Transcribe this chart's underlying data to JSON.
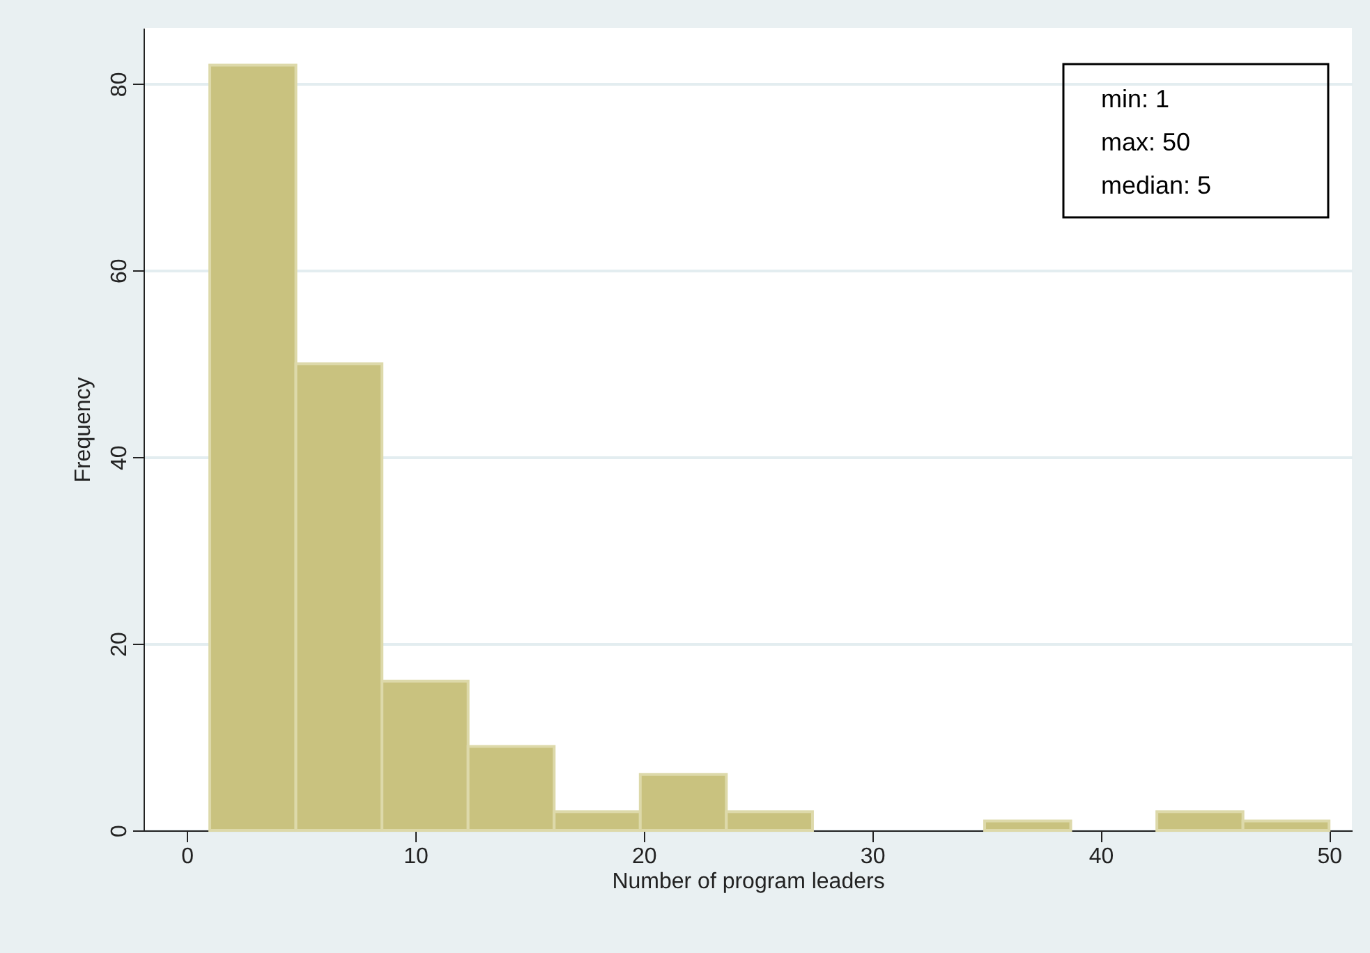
{
  "chart_data": {
    "type": "histogram",
    "xlabel": "Number of program leaders",
    "ylabel": "Frequency",
    "bins": [
      1,
      4.769,
      8.538,
      12.308,
      16.077,
      19.846,
      23.615,
      27.385,
      31.154,
      34.923,
      38.692,
      42.462,
      46.231,
      50
    ],
    "values": [
      82,
      50,
      16,
      9,
      2,
      6,
      2,
      0,
      0,
      1,
      0,
      2,
      1
    ],
    "color": "#c9c27f",
    "xlim": [
      -1.9,
      51
    ],
    "xticks": [
      0,
      10,
      20,
      30,
      40,
      50
    ],
    "ylim": [
      0,
      86
    ],
    "yticks": [
      0,
      20,
      40,
      60,
      80
    ],
    "grid": "y",
    "annotations": [
      "min: 1",
      "max: 50",
      "median: 5"
    ]
  }
}
